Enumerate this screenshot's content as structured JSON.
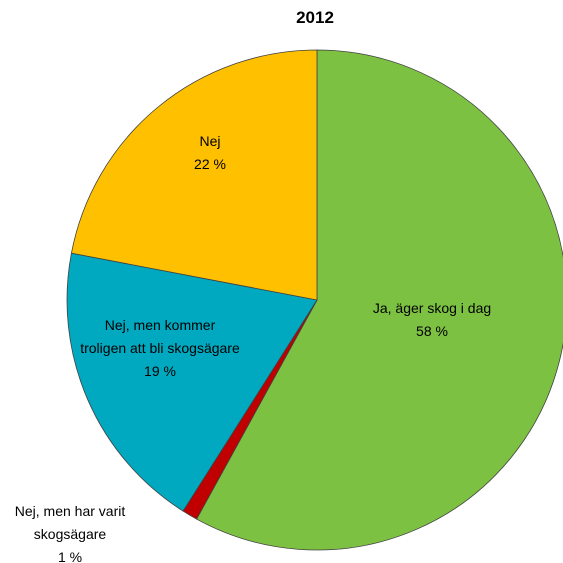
{
  "chart_data": {
    "type": "pie",
    "title": "2012",
    "categories": [
      "Ja, äger skog i dag",
      "Nej, men har varit skogsägare",
      "Nej, men kommer troligen att bli skogsägare",
      "Nej"
    ],
    "values": [
      58,
      1,
      19,
      22
    ],
    "value_labels": [
      "58 %",
      "1 %",
      "19 %",
      "22 %"
    ],
    "colors": [
      "#7dc142",
      "#c00000",
      "#00a9c0",
      "#ffc000"
    ]
  }
}
